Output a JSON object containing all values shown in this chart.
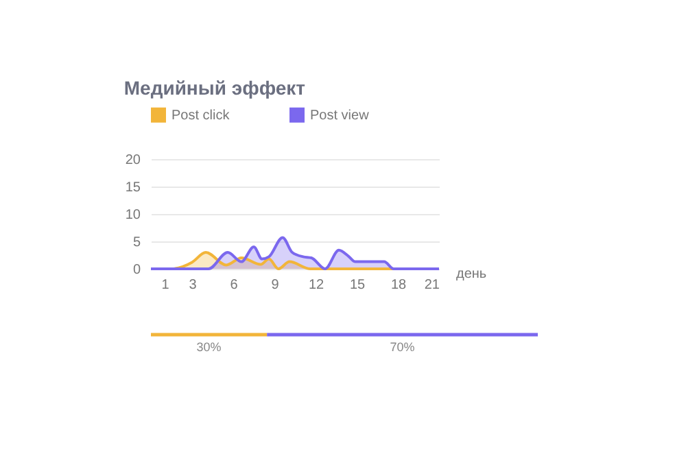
{
  "chart_data": [
    {
      "type": "area",
      "title": "Медийный эффект",
      "xlabel": "день",
      "xlim": [
        0,
        21
      ],
      "xticks": [
        1,
        3,
        6,
        9,
        12,
        15,
        18,
        21
      ],
      "ylim": [
        0,
        20
      ],
      "yticks": [
        0,
        5,
        10,
        15,
        20
      ],
      "grid": "y",
      "legend": "top left",
      "series": [
        {
          "name": "Post click",
          "color": "#f2b53a",
          "x": [
            0,
            1.5,
            3,
            4,
            5.5,
            6.6,
            8,
            8.6,
            9.3,
            10.1,
            11.6,
            21
          ],
          "values": [
            0,
            0,
            1.2,
            3,
            0.7,
            2,
            0.8,
            1.8,
            0,
            1.3,
            0,
            0
          ]
        },
        {
          "name": "Post view",
          "color": "#7b68ee",
          "x": [
            0,
            4.2,
            5.6,
            6.6,
            7.5,
            8.1,
            8.6,
            9.6,
            10.3,
            11.1,
            11.7,
            12.7,
            13.7,
            14.4,
            14.9,
            17,
            17.7,
            21
          ],
          "values": [
            0,
            0,
            3,
            1.3,
            4,
            1.8,
            2.2,
            5.7,
            3,
            2.2,
            2,
            0,
            3.4,
            2.3,
            1.3,
            1.3,
            0,
            0
          ]
        }
      ]
    },
    {
      "type": "bar",
      "orientation": "horizontal",
      "stacked": true,
      "tick_labels": false,
      "categories": [
        null
      ],
      "series": [
        {
          "color": "#f2b53a",
          "values": [
            30
          ],
          "value_labels": [
            "30%"
          ]
        },
        {
          "color": "#7b68ee",
          "values": [
            70
          ],
          "value_labels": [
            "70%"
          ]
        }
      ]
    }
  ]
}
